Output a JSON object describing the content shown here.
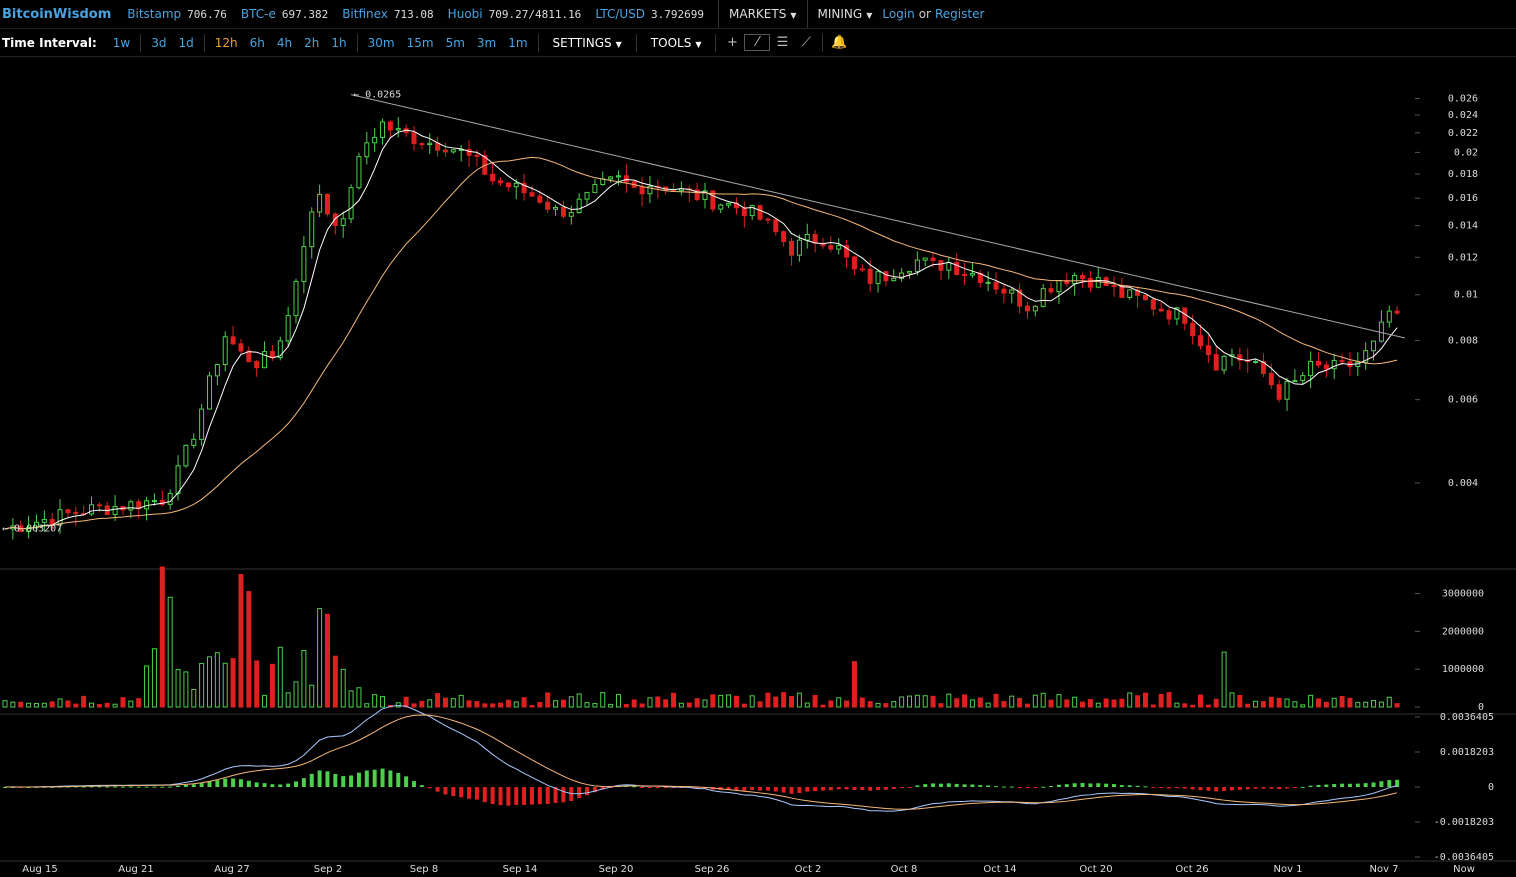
{
  "app": {
    "title": "BitcoinWisdom"
  },
  "tickers": [
    {
      "name": "Bitstamp",
      "value": "706.76"
    },
    {
      "name": "BTC-e",
      "value": "697.382"
    },
    {
      "name": "Bitfinex",
      "value": "713.08"
    },
    {
      "name": "Huobi",
      "value": "709.27/4811.16"
    },
    {
      "name": "LTC/USD",
      "value": "3.792699"
    }
  ],
  "menus": {
    "markets": "MARKETS",
    "mining": "MINING",
    "login": "Login",
    "or": "or",
    "register": "Register"
  },
  "toolbar": {
    "label": "Time Interval:",
    "intervals": [
      "1w",
      "3d",
      "1d",
      "12h",
      "6h",
      "4h",
      "2h",
      "1h",
      "30m",
      "15m",
      "5m",
      "3m",
      "1m"
    ],
    "active": "12h",
    "settings": "SETTINGS",
    "tools": "TOOLS"
  },
  "colors": {
    "up": "#4cd04c",
    "down": "#e02020",
    "ma_fast": "#ffffff",
    "ma_slow": "#f5b77a",
    "trend": "#aaaaaa",
    "accent": "#4aa3df"
  },
  "chart_data": [
    {
      "type": "candlestick",
      "name": "price",
      "yscale": "log",
      "ylim": [
        0.003,
        0.0275
      ],
      "yticks": [
        "0.026",
        "0.024",
        "0.022",
        "0.02",
        "0.018",
        "0.016",
        "0.014",
        "0.012",
        "0.01",
        "0.008",
        "0.006",
        "0.004"
      ],
      "annotations": {
        "high": "← 0.0265",
        "low": "← 0.003207"
      },
      "x_labels": [
        "Aug 15",
        "Aug 21",
        "Aug 27",
        "Sep 2",
        "Sep 8",
        "Sep 14",
        "Sep 20",
        "Sep 26",
        "Oct 2",
        "Oct 8",
        "Oct 14",
        "Oct 20",
        "Oct 26",
        "Nov 1",
        "Nov 7",
        "Now"
      ],
      "close_path": [
        [
          0,
          0.0032
        ],
        [
          10,
          0.0035
        ],
        [
          16,
          0.0036
        ],
        [
          20,
          0.0037
        ],
        [
          22,
          0.0042
        ],
        [
          24,
          0.0051
        ],
        [
          26,
          0.0065
        ],
        [
          28,
          0.0082
        ],
        [
          30,
          0.0075
        ],
        [
          32,
          0.0072
        ],
        [
          34,
          0.0074
        ],
        [
          36,
          0.009
        ],
        [
          38,
          0.013
        ],
        [
          40,
          0.0165
        ],
        [
          41,
          0.015
        ],
        [
          42,
          0.0145
        ],
        [
          43,
          0.014
        ],
        [
          44,
          0.0172
        ],
        [
          46,
          0.021
        ],
        [
          48,
          0.023
        ],
        [
          50,
          0.022
        ],
        [
          52,
          0.0215
        ],
        [
          54,
          0.021
        ],
        [
          56,
          0.0208
        ],
        [
          58,
          0.02
        ],
        [
          60,
          0.019
        ],
        [
          62,
          0.0175
        ],
        [
          64,
          0.017
        ],
        [
          66,
          0.0165
        ],
        [
          68,
          0.016
        ],
        [
          70,
          0.015
        ],
        [
          72,
          0.0152
        ],
        [
          74,
          0.016
        ],
        [
          76,
          0.017
        ],
        [
          78,
          0.0175
        ],
        [
          80,
          0.0168
        ],
        [
          82,
          0.0172
        ],
        [
          84,
          0.017
        ],
        [
          86,
          0.0165
        ],
        [
          88,
          0.0162
        ],
        [
          90,
          0.0158
        ],
        [
          92,
          0.0155
        ],
        [
          94,
          0.0152
        ],
        [
          96,
          0.0145
        ],
        [
          98,
          0.0135
        ],
        [
          100,
          0.0125
        ],
        [
          102,
          0.013
        ],
        [
          104,
          0.0132
        ],
        [
          106,
          0.0125
        ],
        [
          108,
          0.0112
        ],
        [
          110,
          0.0108
        ],
        [
          112,
          0.011
        ],
        [
          114,
          0.0115
        ],
        [
          116,
          0.0118
        ],
        [
          118,
          0.0115
        ],
        [
          120,
          0.0117
        ],
        [
          122,
          0.0112
        ],
        [
          124,
          0.011
        ],
        [
          126,
          0.0105
        ],
        [
          128,
          0.01
        ],
        [
          130,
          0.0095
        ],
        [
          132,
          0.0102
        ],
        [
          134,
          0.0108
        ],
        [
          136,
          0.011
        ],
        [
          138,
          0.0108
        ],
        [
          140,
          0.0105
        ],
        [
          142,
          0.01
        ],
        [
          144,
          0.0098
        ],
        [
          146,
          0.0095
        ],
        [
          148,
          0.0092
        ],
        [
          150,
          0.009
        ],
        [
          152,
          0.008
        ],
        [
          154,
          0.0072
        ],
        [
          156,
          0.0075
        ],
        [
          158,
          0.0072
        ],
        [
          160,
          0.0068
        ],
        [
          162,
          0.0062
        ],
        [
          164,
          0.0065
        ],
        [
          166,
          0.007
        ],
        [
          168,
          0.007
        ],
        [
          170,
          0.007
        ],
        [
          172,
          0.0072
        ],
        [
          174,
          0.0078
        ],
        [
          176,
          0.0092
        ],
        [
          177,
          0.0088
        ]
      ]
    },
    {
      "type": "bar",
      "name": "volume",
      "yticks": [
        "3000000",
        "2000000",
        "1000000",
        "0"
      ],
      "ylim": [
        0,
        3700000
      ],
      "peaks": [
        [
          20,
          3700000
        ],
        [
          21,
          2900000
        ],
        [
          30,
          3500000
        ],
        [
          31,
          3050000
        ],
        [
          40,
          2600000
        ],
        [
          41,
          2450000
        ],
        [
          108,
          1200000
        ],
        [
          155,
          1450000
        ]
      ]
    },
    {
      "type": "macd",
      "name": "macd",
      "yticks": [
        "0.0036405",
        "0.0018203",
        "0",
        "-0.0018203",
        "-0.0036405"
      ],
      "ylim": [
        -0.0036405,
        0.0036405
      ]
    }
  ]
}
